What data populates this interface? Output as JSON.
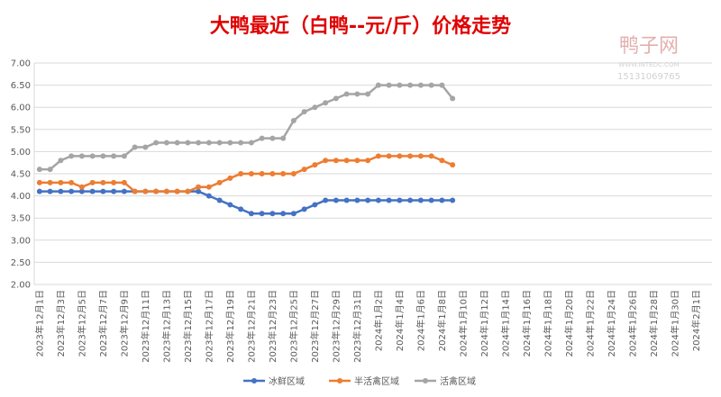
{
  "chart_data": {
    "type": "line",
    "title": "大鸭最近（白鸭--元/斤）价格走势",
    "watermark": {
      "name": "鸭子网",
      "site": "WWW.INTEDC.COM",
      "phone": "15131069765"
    },
    "categories": [
      "2023年12月1日",
      null,
      "2023年12月3日",
      null,
      "2023年12月5日",
      null,
      "2023年12月7日",
      null,
      "2023年12月9日",
      null,
      "2023年12月11日",
      null,
      "2023年12月13日",
      null,
      "2023年12月15日",
      null,
      "2023年12月17日",
      null,
      "2023年12月19日",
      null,
      "2023年12月21日",
      null,
      "2023年12月23日",
      null,
      "2023年12月25日",
      null,
      "2023年12月27日",
      null,
      "2023年12月29日",
      null,
      "2023年12月31日",
      null,
      "2024年1月2日",
      null,
      "2024年1月4日",
      null,
      "2024年1月6日",
      null,
      "2024年1月8日",
      null,
      "2024年1月10日",
      null,
      "2024年1月12日",
      null,
      "2024年1月14日",
      null,
      "2024年1月16日",
      null,
      "2024年1月18日",
      null,
      "2024年1月20日",
      null,
      "2024年1月22日",
      null,
      "2024年1月24日",
      null,
      "2024年1月26日",
      null,
      "2024年1月28日",
      null,
      "2024年1月30日",
      null,
      "2024年2月1日",
      null
    ],
    "series": [
      {
        "name": "冰鲜区域",
        "color": "#4472c4",
        "values": [
          4.1,
          4.1,
          4.1,
          4.1,
          4.1,
          4.1,
          4.1,
          4.1,
          4.1,
          4.1,
          4.1,
          4.1,
          4.1,
          4.1,
          4.1,
          4.1,
          4.0,
          3.9,
          3.8,
          3.7,
          3.6,
          3.6,
          3.6,
          3.6,
          3.6,
          3.7,
          3.8,
          3.9,
          3.9,
          3.9,
          3.9,
          3.9,
          3.9,
          3.9,
          3.9,
          3.9,
          3.9,
          3.9,
          3.9,
          3.9,
          null,
          null,
          null,
          null,
          null,
          null,
          null,
          null,
          null,
          null,
          null,
          null,
          null,
          null,
          null,
          null,
          null,
          null,
          null,
          null,
          null,
          null,
          null,
          null
        ]
      },
      {
        "name": "半活禽区域",
        "color": "#ed7d31",
        "values": [
          4.3,
          4.3,
          4.3,
          4.3,
          4.2,
          4.3,
          4.3,
          4.3,
          4.3,
          4.1,
          4.1,
          4.1,
          4.1,
          4.1,
          4.1,
          4.2,
          4.2,
          4.3,
          4.4,
          4.5,
          4.5,
          4.5,
          4.5,
          4.5,
          4.5,
          4.6,
          4.7,
          4.8,
          4.8,
          4.8,
          4.8,
          4.8,
          4.9,
          4.9,
          4.9,
          4.9,
          4.9,
          4.9,
          4.8,
          4.7,
          null,
          null,
          null,
          null,
          null,
          null,
          null,
          null,
          null,
          null,
          null,
          null,
          null,
          null,
          null,
          null,
          null,
          null,
          null,
          null,
          null,
          null,
          null,
          null
        ]
      },
      {
        "name": "活禽区域",
        "color": "#a5a5a5",
        "values": [
          4.6,
          4.6,
          4.8,
          4.9,
          4.9,
          4.9,
          4.9,
          4.9,
          4.9,
          5.1,
          5.1,
          5.2,
          5.2,
          5.2,
          5.2,
          5.2,
          5.2,
          5.2,
          5.2,
          5.2,
          5.2,
          5.3,
          5.3,
          5.3,
          5.7,
          5.9,
          6.0,
          6.1,
          6.2,
          6.3,
          6.3,
          6.3,
          6.5,
          6.5,
          6.5,
          6.5,
          6.5,
          6.5,
          6.5,
          6.2,
          null,
          null,
          null,
          null,
          null,
          null,
          null,
          null,
          null,
          null,
          null,
          null,
          null,
          null,
          null,
          null,
          null,
          null,
          null,
          null,
          null,
          null,
          null,
          null
        ]
      }
    ],
    "ylim": [
      2,
      7
    ],
    "yticks": [
      {
        "value": 2,
        "label": "2.00"
      },
      {
        "value": 2.5,
        "label": "2.50"
      },
      {
        "value": 3,
        "label": "3.00"
      },
      {
        "value": 3.5,
        "label": "3.50"
      },
      {
        "value": 4,
        "label": "4.00"
      },
      {
        "value": 4.5,
        "label": "4.50"
      },
      {
        "value": 5,
        "label": "5.00"
      },
      {
        "value": 5.5,
        "label": "5.50"
      },
      {
        "value": 6,
        "label": "6.00"
      },
      {
        "value": 6.5,
        "label": "6.50"
      },
      {
        "value": 7,
        "label": "7.00"
      }
    ],
    "grid": true,
    "legend": "bottom"
  }
}
